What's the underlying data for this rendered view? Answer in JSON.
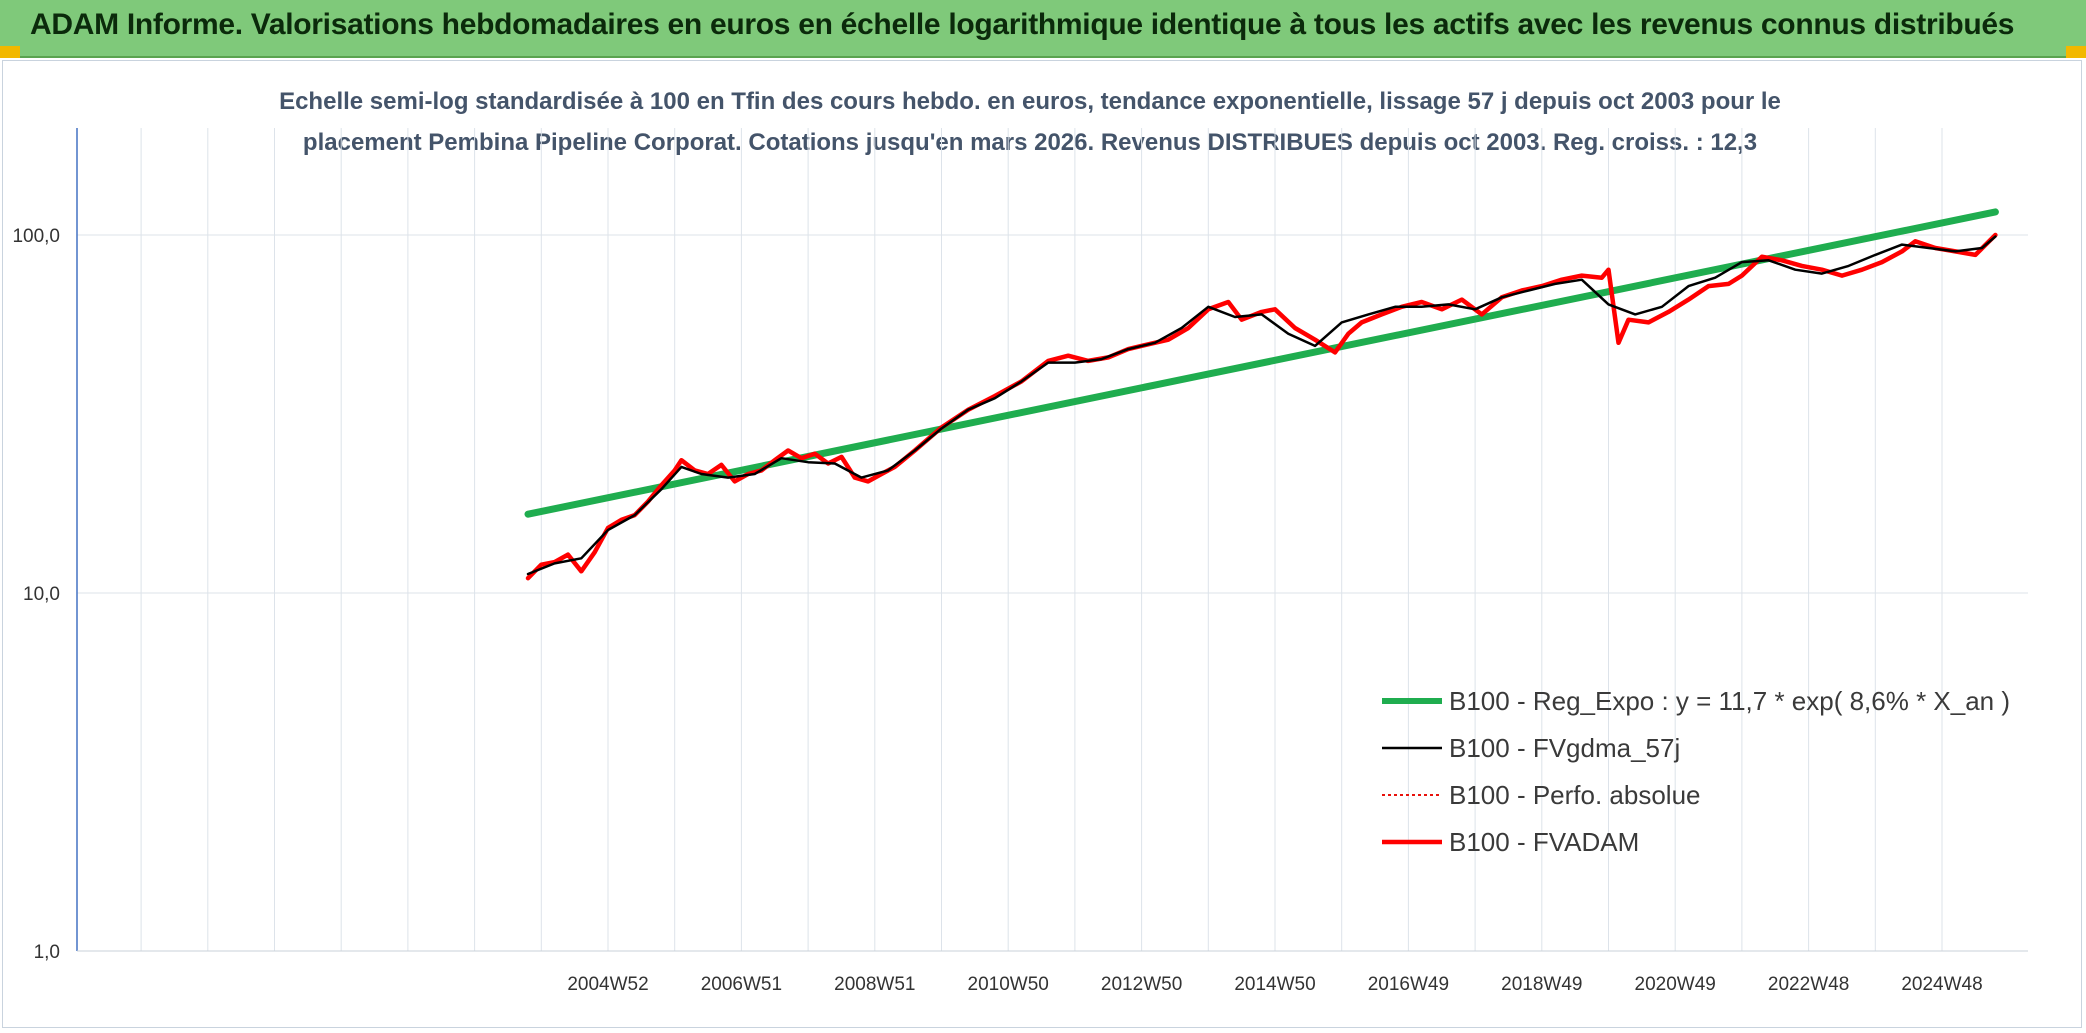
{
  "header": {
    "title": "ADAM Informe. Valorisations hebdomadaires en euros en échelle logarithmique identique à tous les actifs avec les revenus connus distribués"
  },
  "chart_data": {
    "type": "line",
    "title_line1": "Echelle semi-log standardisée à 100 en Tfin des cours hebdo. en euros, tendance exponentielle, lissage 57 j depuis oct 2003 pour le",
    "title_line2": "placement Pembina Pipeline Corporat. Cotations jusqu'en mars 2026. Revenus DISTRIBUES depuis oct 2003. Reg. croiss. : 12,3",
    "y_scale": "log",
    "ylim": [
      1,
      180
    ],
    "xlim": [
      1996.25,
      2025.8
    ],
    "y_ticks": [
      {
        "value": 1,
        "label": "1,0"
      },
      {
        "value": 10,
        "label": "10,0"
      },
      {
        "value": 100,
        "label": "100,0"
      }
    ],
    "x_tick_labels": [
      {
        "x": 2005.0,
        "label": "2004W52"
      },
      {
        "x": 2007.0,
        "label": "2006W51"
      },
      {
        "x": 2009.0,
        "label": "2008W51"
      },
      {
        "x": 2011.0,
        "label": "2010W50"
      },
      {
        "x": 2013.0,
        "label": "2012W50"
      },
      {
        "x": 2015.0,
        "label": "2014W50"
      },
      {
        "x": 2017.0,
        "label": "2016W49"
      },
      {
        "x": 2019.0,
        "label": "2018W49"
      },
      {
        "x": 2021.0,
        "label": "2020W49"
      },
      {
        "x": 2023.0,
        "label": "2022W48"
      },
      {
        "x": 2025.0,
        "label": "2024W48"
      }
    ],
    "grid": true,
    "legend_position": "bottom-right",
    "colors": {
      "trend": "#1fad4f",
      "smooth": "#000000",
      "absolute": "#e8120c",
      "fvadam": "#ff0000",
      "grid": "#dde3ea",
      "axis": "#4472c4"
    },
    "series": [
      {
        "key": "trend",
        "name": "B100 - Reg_Expo : y = 11,7 * exp( 8,6% *  X_an )",
        "x": [
          2003.8,
          2025.8
        ],
        "values": [
          16.6,
          116
        ]
      },
      {
        "key": "smooth",
        "name": "B100 - FVgdma_57j",
        "x": [
          2003.8,
          2004.2,
          2004.6,
          2005.0,
          2005.4,
          2005.8,
          2006.1,
          2006.4,
          2006.8,
          2007.2,
          2007.6,
          2008.0,
          2008.4,
          2008.8,
          2009.2,
          2009.6,
          2010.0,
          2010.4,
          2010.8,
          2011.2,
          2011.6,
          2012.0,
          2012.4,
          2012.8,
          2013.2,
          2013.6,
          2014.0,
          2014.4,
          2014.8,
          2015.2,
          2015.6,
          2016.0,
          2016.4,
          2016.8,
          2017.2,
          2017.6,
          2018.0,
          2018.4,
          2018.8,
          2019.2,
          2019.6,
          2020.0,
          2020.4,
          2020.8,
          2021.2,
          2021.6,
          2022.0,
          2022.4,
          2022.8,
          2023.2,
          2023.6,
          2024.0,
          2024.4,
          2024.8,
          2025.2,
          2025.6,
          2025.8
        ],
        "values": [
          11.3,
          12.1,
          12.5,
          15.0,
          16.5,
          19.5,
          22.5,
          21.5,
          21.0,
          21.5,
          23.8,
          23.2,
          23.0,
          21.0,
          22.0,
          25.0,
          28.8,
          32.5,
          35.0,
          39.0,
          44.0,
          44.0,
          45.0,
          48.0,
          50.0,
          55.0,
          63.0,
          59.0,
          60.0,
          53.0,
          49.0,
          57.0,
          60.0,
          63.0,
          63.0,
          64.0,
          62.0,
          67.0,
          70.0,
          73.0,
          75.0,
          64.0,
          60.0,
          63.0,
          72.0,
          76.0,
          84.0,
          85.0,
          80.0,
          78.0,
          82.0,
          88.0,
          94.0,
          92.0,
          90.0,
          92.0,
          99.0
        ]
      },
      {
        "key": "absolute",
        "name": "B100 - Perfo. absolue",
        "x": [],
        "values": []
      },
      {
        "key": "fvadam",
        "name": "B100 - FVADAM",
        "x": [
          2003.8,
          2004.0,
          2004.2,
          2004.4,
          2004.6,
          2004.8,
          2005.0,
          2005.2,
          2005.4,
          2005.6,
          2005.8,
          2006.0,
          2006.1,
          2006.3,
          2006.5,
          2006.7,
          2006.9,
          2007.1,
          2007.3,
          2007.5,
          2007.7,
          2007.9,
          2008.1,
          2008.3,
          2008.5,
          2008.7,
          2008.9,
          2009.1,
          2009.3,
          2009.6,
          2010.0,
          2010.4,
          2010.8,
          2011.2,
          2011.6,
          2011.9,
          2012.2,
          2012.5,
          2012.8,
          2013.1,
          2013.4,
          2013.7,
          2014.0,
          2014.3,
          2014.5,
          2014.8,
          2015.0,
          2015.3,
          2015.6,
          2015.9,
          2016.1,
          2016.3,
          2016.6,
          2016.9,
          2017.2,
          2017.5,
          2017.8,
          2018.1,
          2018.4,
          2018.7,
          2019.0,
          2019.3,
          2019.6,
          2019.9,
          2020.0,
          2020.15,
          2020.3,
          2020.6,
          2020.9,
          2021.2,
          2021.5,
          2021.8,
          2022.0,
          2022.3,
          2022.6,
          2022.9,
          2023.2,
          2023.5,
          2023.8,
          2024.1,
          2024.4,
          2024.6,
          2024.9,
          2025.2,
          2025.5,
          2025.8
        ],
        "values": [
          11.0,
          12.0,
          12.2,
          12.8,
          11.5,
          13.0,
          15.2,
          16.0,
          16.5,
          18.0,
          20.0,
          22.0,
          23.5,
          22.0,
          21.5,
          22.8,
          20.5,
          21.5,
          22.0,
          23.5,
          25.0,
          23.8,
          24.5,
          23.0,
          24.0,
          21.0,
          20.5,
          21.5,
          22.5,
          25.0,
          29.0,
          32.5,
          35.5,
          39.0,
          44.5,
          46.0,
          44.5,
          45.5,
          48.0,
          49.5,
          51.0,
          55.0,
          62.0,
          65.0,
          58.0,
          61.0,
          62.0,
          55.0,
          51.0,
          47.0,
          53.0,
          57.0,
          60.0,
          63.0,
          65.0,
          62.0,
          66.0,
          60.0,
          67.0,
          70.0,
          72.0,
          75.0,
          77.0,
          76.0,
          80.0,
          50.0,
          58.0,
          57.0,
          61.0,
          66.0,
          72.0,
          73.0,
          77.0,
          87.0,
          85.0,
          82.0,
          80.0,
          77.0,
          80.0,
          84.0,
          90.0,
          96.0,
          92.0,
          90.0,
          88.0,
          100.0
        ]
      }
    ]
  }
}
